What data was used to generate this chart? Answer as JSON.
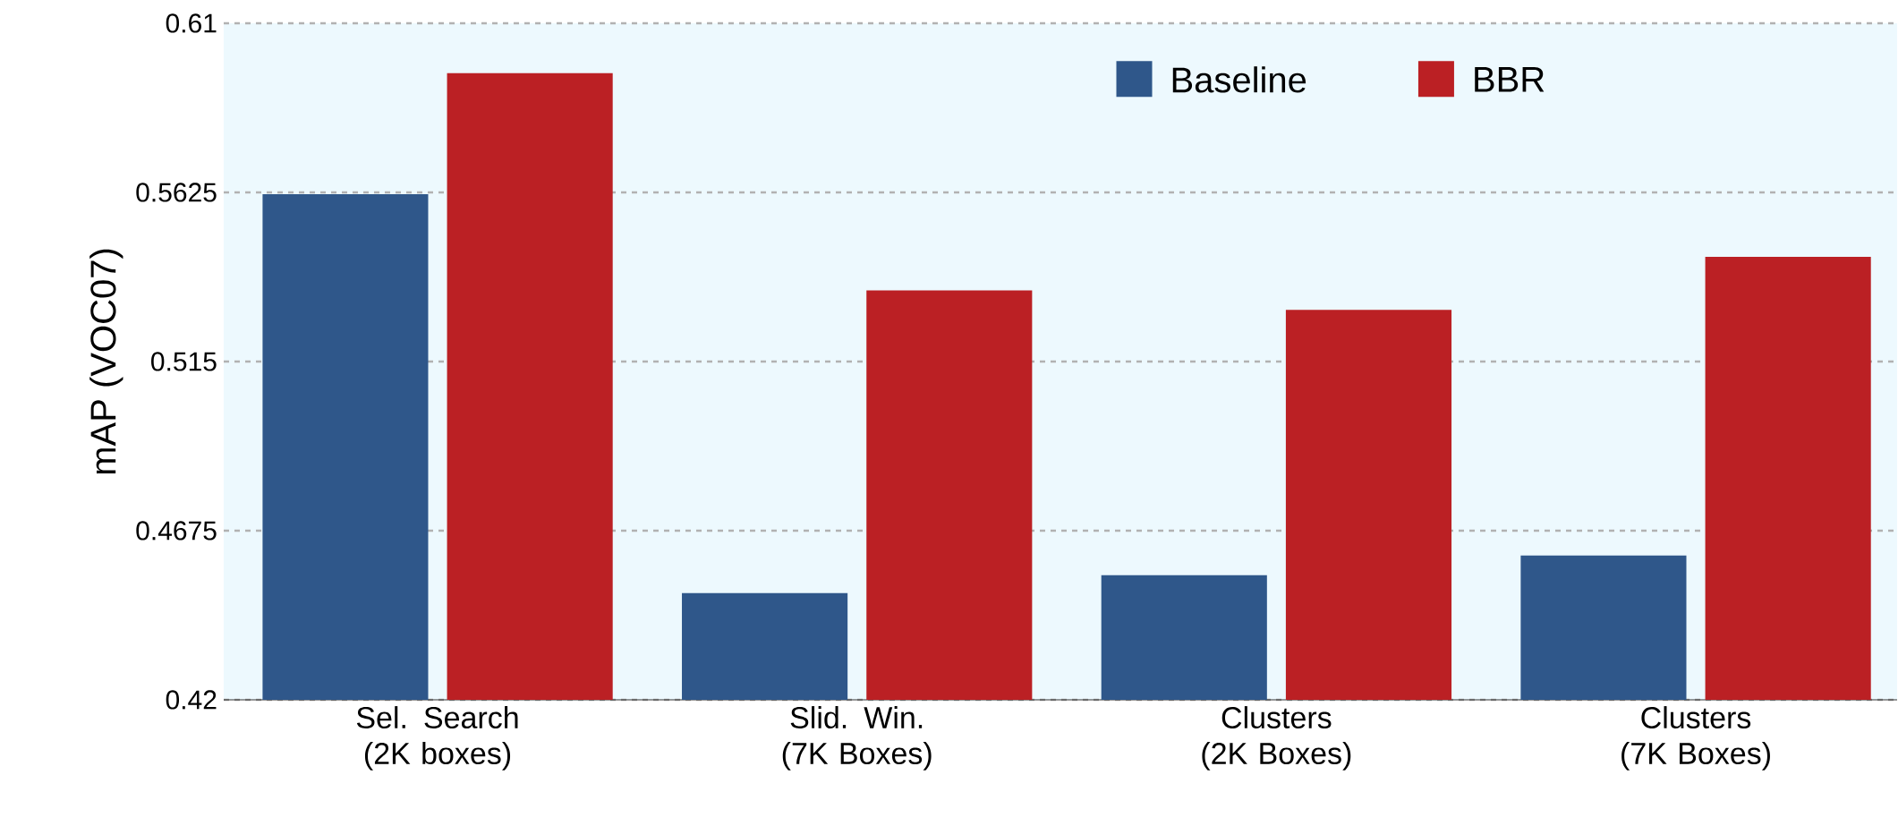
{
  "chart_data": {
    "type": "bar",
    "ylabel": "mAP (VOC07)",
    "categories": [
      "Sel. Search (2K boxes)",
      "Slid. Win. (7K Boxes)",
      "Clusters (2K Boxes)",
      "Clusters (7K Boxes)"
    ],
    "series": [
      {
        "name": "Baseline",
        "color": "#2f578a",
        "values": [
          0.562,
          0.45,
          0.455,
          0.4605
        ]
      },
      {
        "name": "BBR",
        "color": "#bb2024",
        "values": [
          0.596,
          0.535,
          0.5295,
          0.5444
        ]
      }
    ],
    "ylim": [
      0.42,
      0.61
    ],
    "yticks": [
      0.42,
      0.4675,
      0.515,
      0.5625,
      0.61
    ],
    "grid": "y",
    "legend": "top right"
  }
}
